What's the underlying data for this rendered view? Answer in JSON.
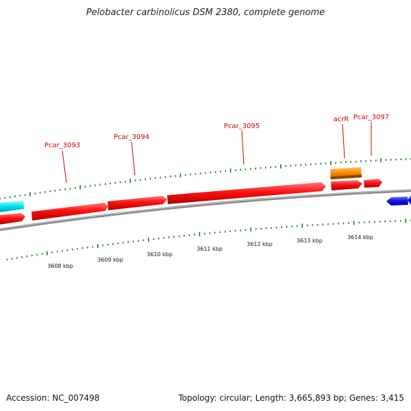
{
  "title": "Pelobacter carbinolicus DSM 2380, complete genome",
  "footer": {
    "accession": "Accession: NC_007498",
    "summary": "Topology: circular; Length: 3,665,893 bp; Genes: 3,415"
  },
  "colors": {
    "backbone": "#8c8c8c",
    "tick": "#1a7a1a",
    "gene_red": "#ff1010",
    "gene_orange": "#ff8c00",
    "gene_cyan": "#00e5ee",
    "gene_blue": "#1515e6",
    "label": "#cc0000"
  },
  "scale_labels": [
    "3608 kbp",
    "3609 kbp",
    "3610 kbp",
    "3611 kbp",
    "3612 kbp",
    "3613 kbp",
    "3614 kbp"
  ],
  "genes": [
    {
      "label": "",
      "color": "cyan"
    },
    {
      "label": "",
      "color": "red"
    },
    {
      "label": "Pcar_3093",
      "color": "red"
    },
    {
      "label": "Pcar_3094",
      "color": "red"
    },
    {
      "label": "Pcar_3095",
      "color": "red"
    },
    {
      "label": "acrR",
      "color": "orange"
    },
    {
      "label": "",
      "color": "red"
    },
    {
      "label": "Pcar_3097",
      "color": "red"
    },
    {
      "label": "",
      "color": "blue"
    },
    {
      "label": "",
      "color": "blue"
    }
  ]
}
